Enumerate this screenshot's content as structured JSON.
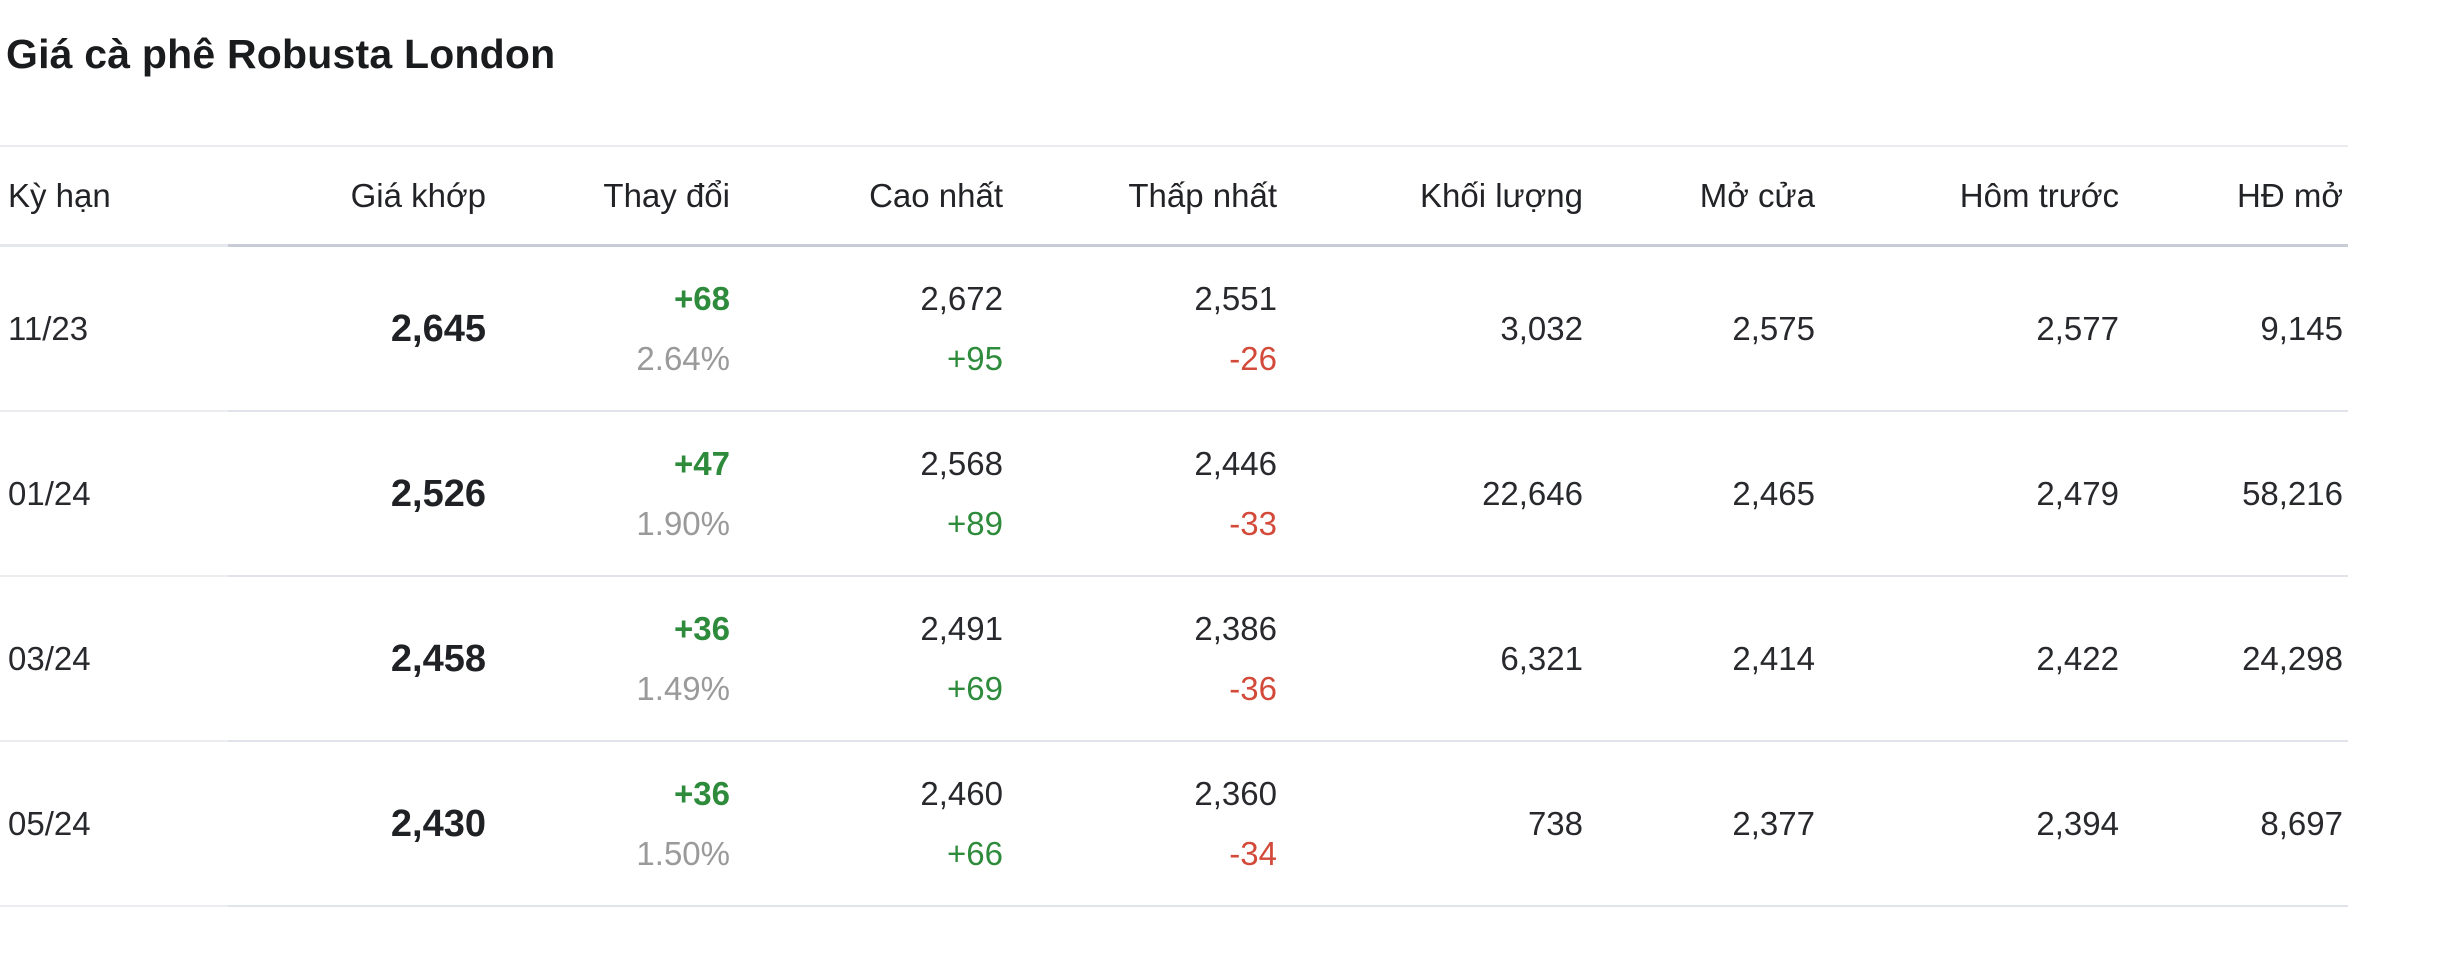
{
  "page": {
    "title": "Giá cà phê Robusta London"
  },
  "table": {
    "columns": [
      "Kỳ hạn",
      "Giá khớp",
      "Thay đổi",
      "Cao nhất",
      "Thấp nhất",
      "Khối lượng",
      "Mở cửa",
      "Hôm trước",
      "HĐ mở"
    ],
    "rows": [
      {
        "term": "11/23",
        "price": "2,645",
        "change": "+68",
        "change_pct": "2.64%",
        "high": "2,672",
        "high_delta": "+95",
        "low": "2,551",
        "low_delta": "-26",
        "volume": "3,032",
        "open": "2,575",
        "prev": "2,577",
        "open_interest": "9,145"
      },
      {
        "term": "01/24",
        "price": "2,526",
        "change": "+47",
        "change_pct": "1.90%",
        "high": "2,568",
        "high_delta": "+89",
        "low": "2,446",
        "low_delta": "-33",
        "volume": "22,646",
        "open": "2,465",
        "prev": "2,479",
        "open_interest": "58,216"
      },
      {
        "term": "03/24",
        "price": "2,458",
        "change": "+36",
        "change_pct": "1.49%",
        "high": "2,491",
        "high_delta": "+69",
        "low": "2,386",
        "low_delta": "-36",
        "volume": "6,321",
        "open": "2,414",
        "prev": "2,422",
        "open_interest": "24,298"
      },
      {
        "term": "05/24",
        "price": "2,430",
        "change": "+36",
        "change_pct": "1.50%",
        "high": "2,460",
        "high_delta": "+66",
        "low": "2,360",
        "low_delta": "-34",
        "volume": "738",
        "open": "2,377",
        "prev": "2,394",
        "open_interest": "8,697"
      }
    ]
  },
  "colors": {
    "up": "#2e8b3c",
    "down": "#d34a3a",
    "muted_percent": "#9a9a9a",
    "text": "#28292d",
    "header_underline": "#c8cdd5",
    "row_divider": "#e0e3e9",
    "top_divider": "#e9ebef"
  }
}
